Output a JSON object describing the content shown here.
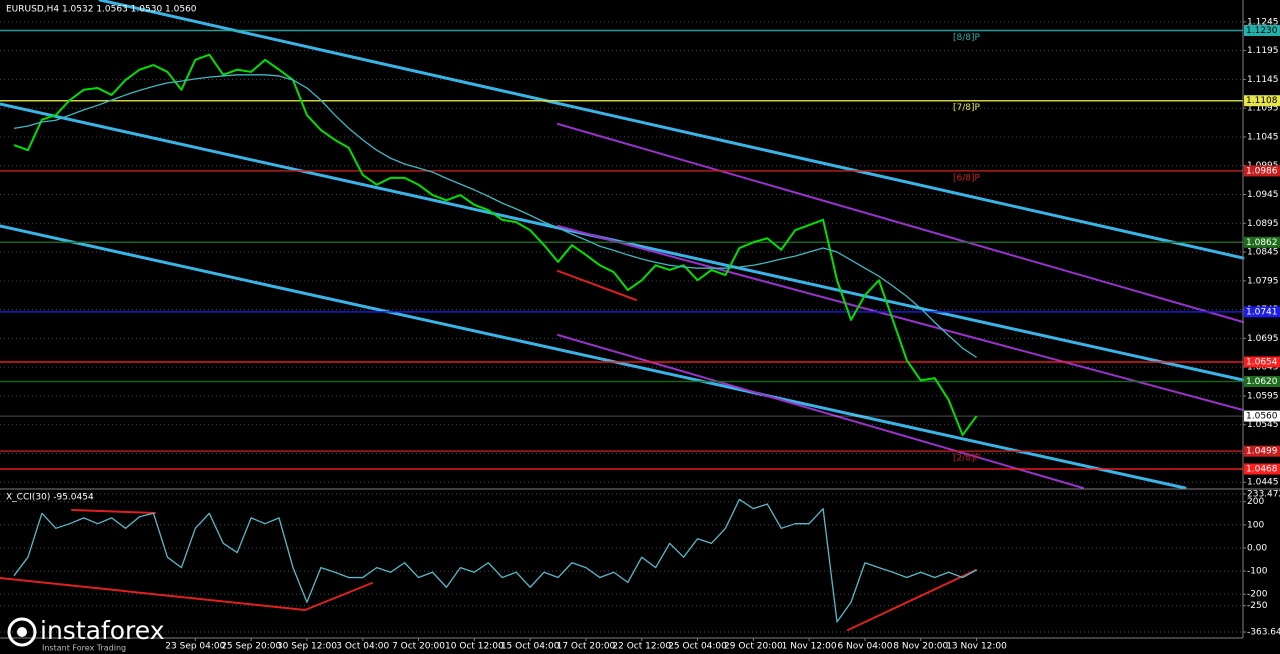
{
  "chart_data": [
    {
      "type": "line",
      "title": "EURUSD,H4  1.0532 1.0563 1.0530 1.0560",
      "categories": [
        null,
        null,
        null,
        null,
        null,
        null,
        null,
        null,
        null,
        null,
        null,
        null,
        null,
        "23 Sep 04:00",
        null,
        null,
        null,
        "25 Sep 20:00",
        null,
        null,
        null,
        "30 Sep 12:00",
        null,
        null,
        null,
        "3 Oct 04:00",
        null,
        null,
        null,
        "7 Oct 20:00",
        null,
        null,
        null,
        "10 Oct 12:00",
        null,
        null,
        null,
        "15 Oct 04:00",
        null,
        null,
        null,
        "17 Oct 20:00",
        null,
        null,
        null,
        "22 Oct 12:00",
        null,
        null,
        null,
        "25 Oct 04:00",
        null,
        null,
        null,
        "29 Oct 20:00",
        null,
        null,
        null,
        "1 Nov 12:00",
        null,
        null,
        null,
        "6 Nov 04:00",
        null,
        null,
        null,
        "8 Nov 20:00",
        null,
        null,
        null,
        "13 Nov 12:00"
      ],
      "series": [
        {
          "color": "#00e000",
          "values": [
            1.1031,
            1.1022,
            1.1075,
            1.1083,
            1.1109,
            1.1127,
            1.113,
            1.1118,
            1.1144,
            1.1162,
            1.117,
            1.1158,
            1.1127,
            1.1179,
            1.1188,
            1.1153,
            1.1162,
            1.1158,
            1.1179,
            1.1162,
            1.1144,
            1.1083,
            1.1057,
            1.104,
            1.1026,
            1.0979,
            1.0962,
            1.0974,
            1.0974,
            1.0962,
            1.0944,
            1.0935,
            1.0944,
            1.0927,
            1.0918,
            1.0901,
            1.0897,
            1.0883,
            1.0857,
            1.0828,
            1.0857,
            1.084,
            1.0822,
            1.081,
            1.0779,
            1.0796,
            1.0822,
            1.0814,
            1.0822,
            1.0796,
            1.0814,
            1.0805,
            1.0852,
            1.0862,
            1.0869,
            1.0849,
            1.0883,
            1.0892,
            1.0901,
            1.0796,
            1.0727,
            1.077,
            1.0796,
            1.0727,
            1.0657,
            1.0622,
            1.0626,
            1.0588,
            1.0527,
            1.056
          ]
        },
        {
          "color": "#3fb8c0",
          "values": [
            1.106,
            1.1064,
            1.1071,
            1.1074,
            1.1083,
            1.1092,
            1.11,
            1.1109,
            1.1118,
            1.1126,
            1.1133,
            1.1139,
            1.1142,
            1.1146,
            1.1149,
            1.1151,
            1.1153,
            1.1153,
            1.1153,
            1.1151,
            1.1144,
            1.113,
            1.1109,
            1.1083,
            1.106,
            1.104,
            1.1022,
            1.1008,
            1.0998,
            1.0991,
            1.0984,
            1.0973,
            1.0963,
            1.0953,
            1.0942,
            1.093,
            1.092,
            1.0909,
            1.0897,
            1.0887,
            1.0876,
            1.0866,
            1.0855,
            1.0848,
            1.084,
            1.0833,
            1.0827,
            1.0822,
            1.0819,
            1.0817,
            1.0817,
            1.0817,
            1.0819,
            1.0822,
            1.0827,
            1.0833,
            1.0838,
            1.0845,
            1.0852,
            1.0845,
            1.0831,
            1.0817,
            1.0803,
            1.0786,
            1.0768,
            1.0747,
            1.0723,
            1.07,
            1.0678,
            1.0662
          ]
        }
      ],
      "ylim": [
        1.0435,
        1.1283
      ],
      "yticks": [
        1.0445,
        1.0495,
        1.0545,
        1.0595,
        1.0645,
        1.0695,
        1.0745,
        1.0795,
        1.0845,
        1.0895,
        1.0945,
        1.0995,
        1.1045,
        1.1095,
        1.1145,
        1.1195,
        1.1245
      ],
      "grid": true,
      "levels": [
        {
          "value": 1.123,
          "label": "1.1230",
          "color": "#20b2aa",
          "tag": "[8/8]P"
        },
        {
          "value": 1.1108,
          "label": "1.1108",
          "color": "#e6e64a",
          "tag": "[7/8]P"
        },
        {
          "value": 1.0986,
          "label": "1.0986",
          "color": "#c81e1e",
          "tag": "[6/8]P"
        },
        {
          "value": 1.0862,
          "label": "1.0862",
          "color": "#1e6e1e"
        },
        {
          "value": 1.0741,
          "label": "1.0741",
          "color": "#1e1ee6"
        },
        {
          "value": 1.0654,
          "label": "1.0654",
          "color": "#ff1e1e"
        },
        {
          "value": 1.062,
          "label": "1.0620",
          "color": "#1e6e1e"
        },
        {
          "value": 1.056,
          "label": "1.0560",
          "color": "#ffffff"
        },
        {
          "value": 1.0499,
          "label": "1.0499",
          "color": "#c81e1e",
          "tag": "[2/8]P"
        },
        {
          "value": 1.0468,
          "label": "1.0468",
          "color": "#ff1e1e"
        }
      ]
    },
    {
      "type": "line",
      "title": "X_CCI(30) -95.0454",
      "series": [
        {
          "color": "#5ab8c8",
          "values": [
            -120,
            -40,
            150,
            85,
            105,
            130,
            105,
            130,
            85,
            135,
            150,
            -40,
            -85,
            85,
            150,
            20,
            -20,
            130,
            105,
            130,
            -85,
            -235,
            -85,
            -105,
            -128,
            -128,
            -85,
            -105,
            -64,
            -128,
            -105,
            -170,
            -85,
            -105,
            -64,
            -128,
            -105,
            -170,
            -105,
            -128,
            -64,
            -85,
            -128,
            -105,
            -149,
            -40,
            -85,
            20,
            -40,
            40,
            20,
            85,
            210,
            170,
            190,
            85,
            105,
            105,
            170,
            -320,
            -235,
            -64,
            -85,
            -105,
            -128,
            -105,
            -128,
            -105,
            -128,
            -95.0454
          ]
        }
      ],
      "ylim": [
        -363.6451,
        233.4725
      ],
      "yticks": [
        -363.6451,
        -250,
        -200,
        -100,
        {
          "value": 0,
          "label": "0.00"
        },
        100,
        200,
        233.4725
      ],
      "grid": true
    }
  ],
  "watermark": {
    "brand": "instaforex",
    "tagline": "Instant Forex Trading"
  }
}
